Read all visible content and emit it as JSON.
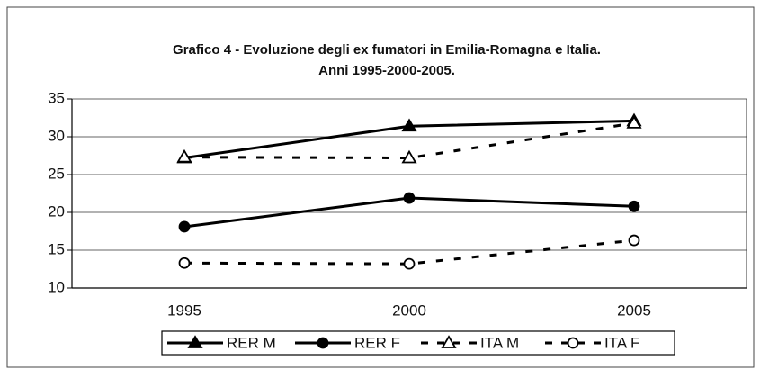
{
  "chart_data": {
    "type": "line",
    "title": "Grafico 4 - Evoluzione degli ex fumatori in Emilia-Romagna e Italia.",
    "subtitle": "Anni 1995-2000-2005.",
    "categories": [
      "1995",
      "2000",
      "2005"
    ],
    "series": [
      {
        "name": "RER M",
        "color": "#000000",
        "marker": "triangle",
        "filled": true,
        "dashed": false,
        "values": [
          27.2,
          31.4,
          32.1
        ]
      },
      {
        "name": "RER F",
        "color": "#000000",
        "marker": "circle",
        "filled": true,
        "dashed": false,
        "values": [
          18.1,
          21.9,
          20.8
        ]
      },
      {
        "name": "ITA M",
        "color": "#000000",
        "marker": "triangle",
        "filled": false,
        "dashed": true,
        "values": [
          27.3,
          27.2,
          31.8
        ]
      },
      {
        "name": "ITA F",
        "color": "#000000",
        "marker": "circle",
        "filled": false,
        "dashed": true,
        "values": [
          13.3,
          13.2,
          16.3
        ]
      }
    ],
    "ylim": [
      10,
      35
    ],
    "yticks": [
      10,
      15,
      20,
      25,
      30,
      35
    ],
    "grid": true,
    "legend": "bottom"
  }
}
